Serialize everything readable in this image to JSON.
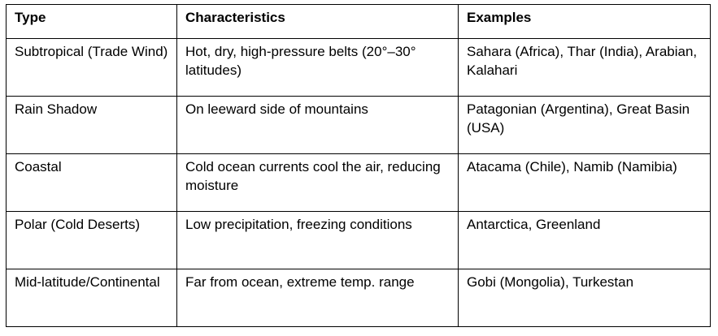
{
  "table": {
    "headers": {
      "type": "Type",
      "characteristics": "Characteristics",
      "examples": "Examples"
    },
    "rows": [
      {
        "type": "Subtropical (Trade Wind)",
        "characteristics": "Hot, dry, high-pressure belts (20°–30° latitudes)",
        "examples": "Sahara (Africa), Thar (India), Arabian, Kalahari"
      },
      {
        "type": "Rain Shadow",
        "characteristics": "On leeward side of mountains",
        "examples": "Patagonian (Argentina), Great Basin (USA)"
      },
      {
        "type": "Coastal",
        "characteristics": "Cold ocean currents cool the air, reducing moisture",
        "examples": "Atacama (Chile), Namib (Namibia)"
      },
      {
        "type": "Polar (Cold Deserts)",
        "characteristics": "Low precipitation, freezing conditions",
        "examples": "Antarctica, Greenland"
      },
      {
        "type": "Mid-latitude/Continental",
        "characteristics": "Far from ocean, extreme temp. range",
        "examples": "Gobi (Mongolia), Turkestan"
      }
    ]
  }
}
